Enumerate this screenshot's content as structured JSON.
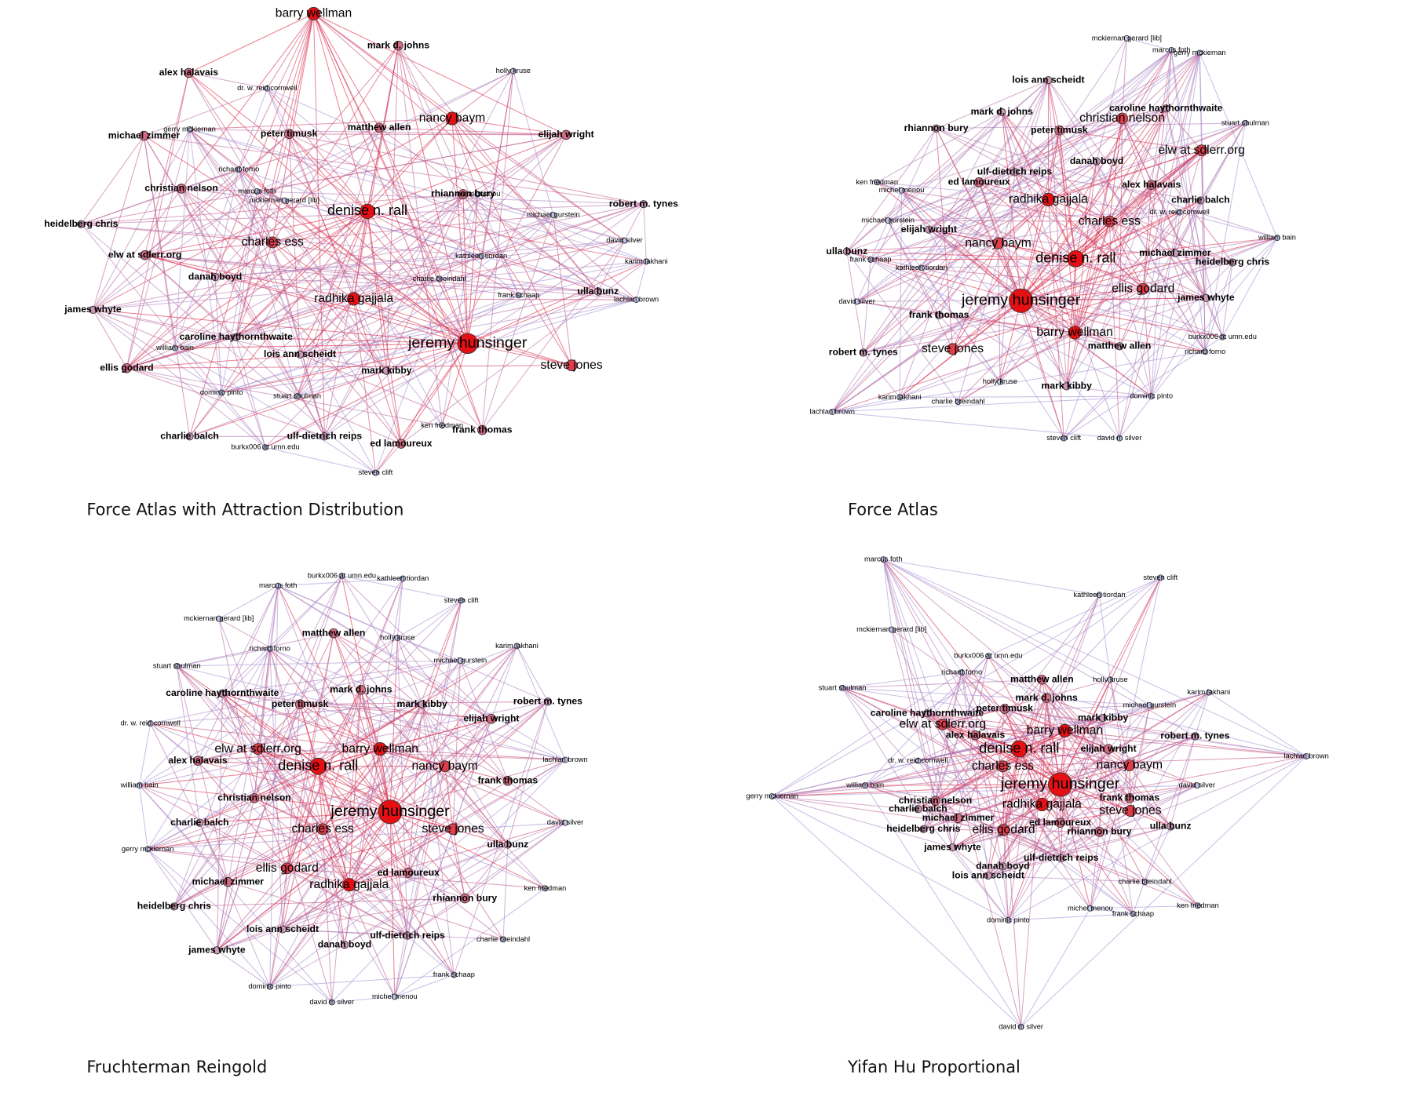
{
  "panels": [
    {
      "caption": "Force Atlas with Attraction Distribution",
      "nodes": [
        "barry wellman",
        "mark d. johns",
        "alex halavais",
        "holly kruse",
        "dr. w. reid cornwell",
        "michael zimmer",
        "gerry mckiernan",
        "peter timusk",
        "matthew allen",
        "nancy baym",
        "elijah wright",
        "richard forno",
        "christian nelson",
        "marcus foth",
        "mckiernan gerard [lib]",
        "rhiannon bury",
        "michel menou",
        "robert m. tynes",
        "heidelberg chris",
        "denise n. rall",
        "michael gurstein",
        "david silver",
        "elw at sdlerr.org",
        "charles ess",
        "kathleen tiordan",
        "karim lakhani",
        "danah boyd",
        "charlie breindahl",
        "frank schaap",
        "ulla bunz",
        "lachlan brown",
        "radhika gajjala",
        "james whyte",
        "caroline haythornthwaite",
        "jeremy hunsinger",
        "william bain",
        "lois ann scheidt",
        "ellis godard",
        "steve jones",
        "mark kibby",
        "dominic pinto",
        "stuart shulman",
        "ken friedman",
        "frank thomas",
        "charlie balch",
        "ulf-dietrich reips",
        "ed lamoureux",
        "burkx006 at umn.edu",
        "steven clift"
      ]
    },
    {
      "caption": "Force Atlas",
      "nodes": [
        "barry wellman",
        "mark d. johns",
        "alex halavais",
        "holly kruse",
        "dr. w. reid cornwell",
        "michael zimmer",
        "gerry mckiernan",
        "peter timusk",
        "matthew allen",
        "nancy baym",
        "elijah wright",
        "richard forno",
        "christian nelson",
        "marcus foth",
        "mckiernan gerard [lib]",
        "rhiannon bury",
        "michel menou",
        "robert m. tynes",
        "heidelberg chris",
        "denise n. rall",
        "michael gurstein",
        "david silver",
        "elw at sdlerr.org",
        "charles ess",
        "kathleen tiordan",
        "karim lakhani",
        "danah boyd",
        "charlie breindahl",
        "frank schaap",
        "ulla bunz",
        "lachlan brown",
        "radhika gajjala",
        "james whyte",
        "caroline haythornthwaite",
        "jeremy hunsinger",
        "william bain",
        "lois ann scheidt",
        "ellis godard",
        "steve jones",
        "mark kibby",
        "dominic pinto",
        "stuart shulman",
        "ken friedman",
        "frank thomas",
        "charlie balch",
        "ulf-dietrich reips",
        "ed lamoureux",
        "burkx006 at umn.edu",
        "steven clift",
        "david m silver"
      ]
    },
    {
      "caption": "Fruchterman Reingold",
      "nodes": [
        "barry wellman",
        "mark d. johns",
        "alex halavais",
        "holly kruse",
        "dr. w. reid cornwell",
        "michael zimmer",
        "gerry mckiernan",
        "peter timusk",
        "matthew allen",
        "nancy baym",
        "elijah wright",
        "richard forno",
        "christian nelson",
        "marcus foth",
        "mckiernan gerard [lib]",
        "rhiannon bury",
        "michel menou",
        "robert m. tynes",
        "heidelberg chris",
        "denise n. rall",
        "michael gurstein",
        "david silver",
        "elw at sdlerr.org",
        "charles ess",
        "kathleen tiordan",
        "karim lakhani",
        "danah boyd",
        "charlie breindahl",
        "frank schaap",
        "ulla bunz",
        "lachlan brown",
        "radhika gajjala",
        "james whyte",
        "caroline haythornthwaite",
        "jeremy hunsinger",
        "william bain",
        "lois ann scheidt",
        "ellis godard",
        "steve jones",
        "mark kibby",
        "dominic pinto",
        "stuart shulman",
        "ken friedman",
        "frank thomas",
        "charlie balch",
        "ulf-dietrich reips",
        "ed lamoureux",
        "burkx006 at umn.edu",
        "steven clift",
        "david m silver"
      ]
    },
    {
      "caption": "Yifan Hu Proportional",
      "nodes": [
        "barry wellman",
        "mark d. johns",
        "alex halavais",
        "holly kruse",
        "dr. w. reid cornwell",
        "michael zimmer",
        "gerry mckiernan",
        "peter timusk",
        "matthew allen",
        "nancy baym",
        "elijah wright",
        "richard forno",
        "christian nelson",
        "marcus foth",
        "mckiernan gerard [lib]",
        "rhiannon bury",
        "michel menou",
        "robert m. tynes",
        "heidelberg chris",
        "denise n. rall",
        "michael gurstein",
        "david silver",
        "elw at sdlerr.org",
        "charles ess",
        "kathleen tiordan",
        "karim lakhani",
        "danah boyd",
        "charlie breindahl",
        "frank schaap",
        "ulla bunz",
        "lachlan brown",
        "radhika gajjala",
        "james whyte",
        "caroline haythornthwaite",
        "jeremy hunsinger",
        "william bain",
        "lois ann scheidt",
        "ellis godard",
        "steve jones",
        "mark kibby",
        "dominic pinto",
        "stuart shulman",
        "ken friedman",
        "frank thomas",
        "charlie balch",
        "ulf-dietrich reips",
        "ed lamoureux",
        "burkx006 at umn.edu",
        "steven clift",
        "david m silver"
      ]
    }
  ]
}
